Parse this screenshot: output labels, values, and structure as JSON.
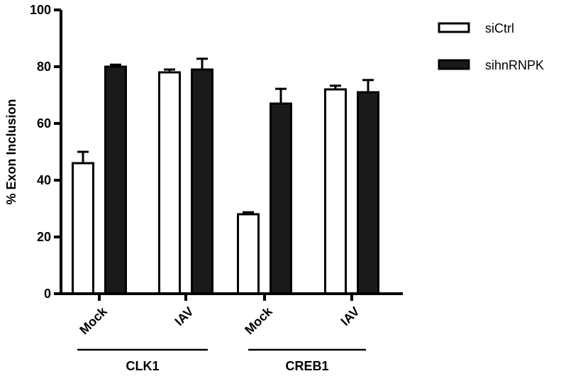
{
  "chart_data": {
    "type": "bar",
    "ylabel": "% Exon Inclusion",
    "xlabel": "",
    "ylim": [
      0,
      100
    ],
    "yticks": [
      0,
      20,
      40,
      60,
      80,
      100
    ],
    "categories": [
      "Mock",
      "IAV",
      "Mock",
      "IAV"
    ],
    "groups": [
      {
        "label": "CLK1",
        "categories": [
          "Mock",
          "IAV"
        ]
      },
      {
        "label": "CREB1",
        "categories": [
          "Mock",
          "IAV"
        ]
      }
    ],
    "series": [
      {
        "name": "siCtrl",
        "fill": "#ffffff",
        "values": [
          46,
          78,
          28,
          72
        ],
        "errors": [
          4,
          1,
          0.7,
          1.3
        ]
      },
      {
        "name": "sihnRNPK",
        "fill": "#1a1a1a",
        "values": [
          80,
          79,
          67,
          71
        ],
        "errors": [
          0.7,
          3.8,
          5.2,
          4.3
        ]
      }
    ],
    "legend": {
      "position": "top-right"
    },
    "grid": false
  }
}
